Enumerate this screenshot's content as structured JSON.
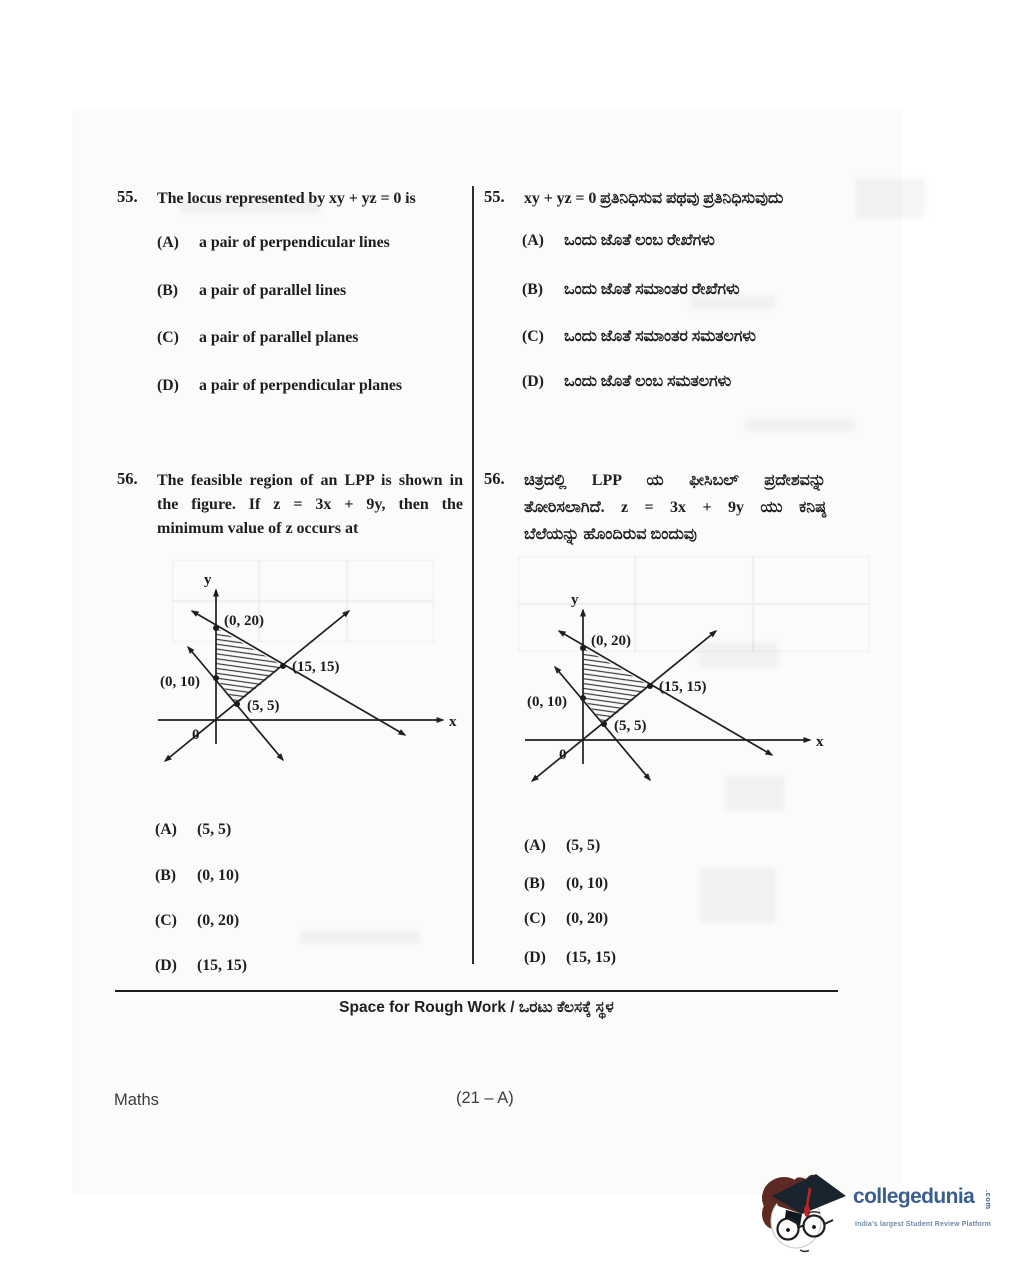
{
  "questions": {
    "q55_en": {
      "number": "55.",
      "text": "The locus represented by  xy + yz = 0  is",
      "options": [
        {
          "label": "(A)",
          "text": "a pair of perpendicular lines"
        },
        {
          "label": "(B)",
          "text": "a pair of parallel lines"
        },
        {
          "label": "(C)",
          "text": "a pair of parallel planes"
        },
        {
          "label": "(D)",
          "text": "a pair of perpendicular planes"
        }
      ]
    },
    "q55_kn": {
      "number": "55.",
      "text": "xy + yz = 0 ಪ್ರತಿನಿಧಿಸುವ ಪಥವು ಪ್ರತಿನಿಧಿಸುವುದು",
      "options": [
        {
          "label": "(A)",
          "text": "ಒಂದು ಜೊತೆ ಲಂಬ ರೇಖೆಗಳು"
        },
        {
          "label": "(B)",
          "text": "ಒಂದು ಜೊತೆ ಸಮಾಂತರ ರೇಖೆಗಳು"
        },
        {
          "label": "(C)",
          "text": "ಒಂದು ಜೊತೆ ಸಮಾಂತರ ಸಮತಲಗಳು"
        },
        {
          "label": "(D)",
          "text": "ಒಂದು ಜೊತೆ ಲಂಬ ಸಮತಲಗಳು"
        }
      ]
    },
    "q56_en": {
      "number": "56.",
      "lines": [
        "The feasible region of an LPP is shown in",
        "the figure. If  z = 3x + 9y,  then the",
        "minimum value of z occurs at"
      ],
      "options": [
        {
          "label": "(A)",
          "text": "(5, 5)"
        },
        {
          "label": "(B)",
          "text": "(0, 10)"
        },
        {
          "label": "(C)",
          "text": "(0, 20)"
        },
        {
          "label": "(D)",
          "text": "(15, 15)"
        }
      ]
    },
    "q56_kn": {
      "number": "56.",
      "lines": [
        "ಚಿತ್ರದಲ್ಲಿ LPP ಯ ಫೀಸಿಬಲ್ ಪ್ರದೇಶವನ್ನು",
        "ತೋರಿಸಲಾಗಿದೆ. z = 3x + 9y ಯು ಕನಿಷ್ಠ",
        "ಬೆಲೆಯನ್ನು ಹೊಂದಿರುವ ಬಿಂದುವು"
      ],
      "options": [
        {
          "label": "(A)",
          "text": "(5, 5)"
        },
        {
          "label": "(B)",
          "text": "(0, 10)"
        },
        {
          "label": "(C)",
          "text": "(0, 20)"
        },
        {
          "label": "(D)",
          "text": "(15, 15)"
        }
      ]
    }
  },
  "figure": {
    "axis_y_label": "y",
    "axis_x_label": "x",
    "origin_label": "0",
    "point_labels": {
      "p020": "(0, 20)",
      "p010": "(0, 10)",
      "p55": "(5, 5)",
      "p1515": "(15, 15)"
    },
    "data": {
      "type": "line",
      "description": "LPP feasible region (hatched) bounded by three lines and the y-axis",
      "feasible_region_vertices": [
        [
          0,
          20
        ],
        [
          15,
          15
        ],
        [
          5,
          5
        ],
        [
          0,
          10
        ]
      ],
      "boundary_lines": [
        {
          "through": [
            [
              0,
              20
            ],
            [
              15,
              15
            ]
          ]
        },
        {
          "through": [
            [
              5,
              5
            ],
            [
              15,
              15
            ]
          ]
        },
        {
          "through": [
            [
              0,
              10
            ],
            [
              5,
              5
            ]
          ]
        }
      ],
      "shaded": true
    }
  },
  "footer": {
    "rough_work_label": "Space for Rough Work / ಒರಟು ಕೆಲಸಕ್ಕೆ ಸ್ಥಳ",
    "subject": "Maths",
    "page_code": "(21 – A)"
  },
  "logo": {
    "brand": "collegedunia",
    "tld": ".com",
    "tagline": "India's largest Student Review Platform",
    "brand_color": "#3b5e91",
    "tassel_color": "#c0262d"
  }
}
